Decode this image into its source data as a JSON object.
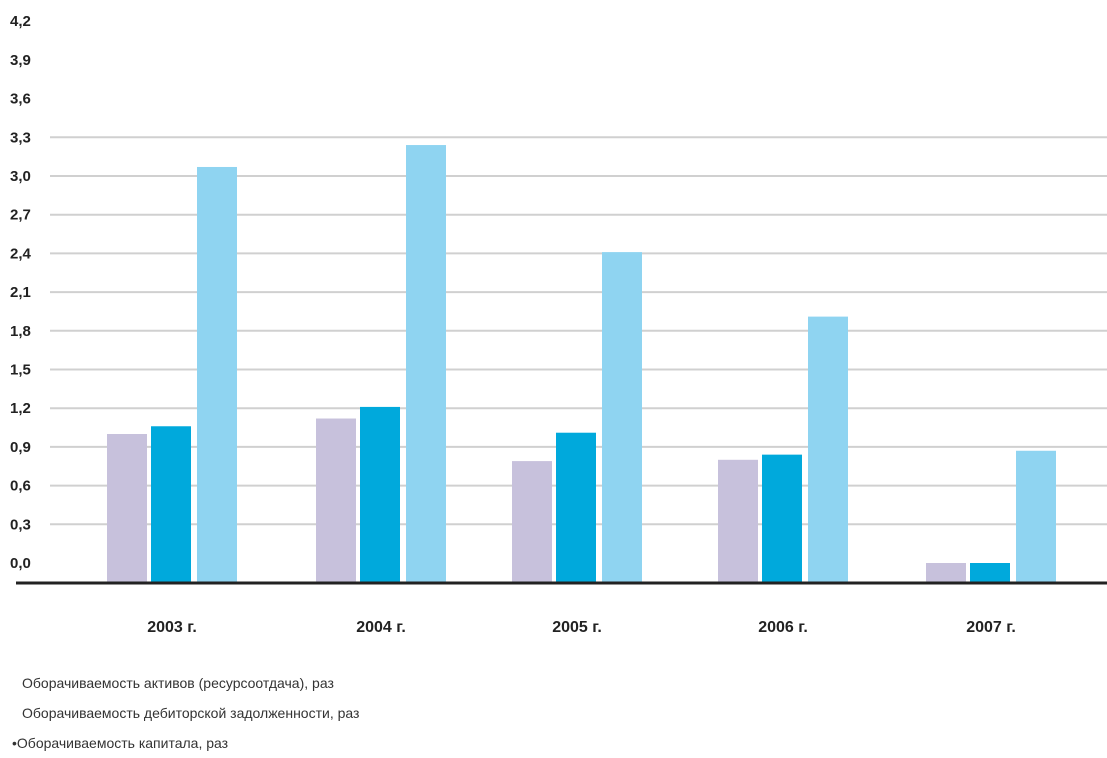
{
  "chart_data": {
    "type": "bar",
    "categories": [
      "2003 г.",
      "2004 г.",
      "2005 г.",
      "2006 г.",
      "2007 г."
    ],
    "series": [
      {
        "name": "Оборачиваемость активов (ресурсоотдача), раз",
        "color": "#c7c1dc",
        "values": [
          1.0,
          1.12,
          0.79,
          0.8,
          0.0
        ]
      },
      {
        "name": "Оборачиваемость дебиторской задолженности, раз",
        "color": "#00a9dc",
        "values": [
          1.06,
          1.21,
          1.01,
          0.84,
          0.0
        ]
      },
      {
        "name": "Оборачиваемость капитала, раз",
        "color": "#8fd4f1",
        "values": [
          3.07,
          3.24,
          2.41,
          1.91,
          0.87
        ]
      }
    ],
    "ytick_labels": [
      "0,0",
      "0,3",
      "0,6",
      "0,9",
      "1,2",
      "1,5",
      "1,8",
      "2,1",
      "2,4",
      "2,7",
      "3,0",
      "3,3",
      "3,6",
      "3,9",
      "4,2"
    ],
    "ylim": [
      0,
      4.2
    ],
    "grid": true,
    "legend_position": "bottom-left"
  },
  "legend": [
    {
      "text": "Оборачиваемость активов (ресурсоотдача), раз",
      "prefix": ""
    },
    {
      "text": "Оборачиваемость дебиторской задолженности, раз",
      "prefix": ""
    },
    {
      "text": "Оборачиваемость капитала, раз",
      "prefix": "• "
    }
  ]
}
